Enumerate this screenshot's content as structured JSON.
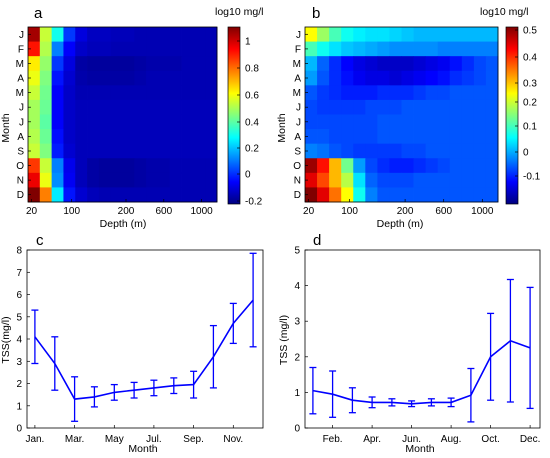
{
  "chart_data": [
    {
      "id": "a",
      "type": "heatmap",
      "panel_label": "a",
      "colorbar_title": "log10 mg/l",
      "ylabel": "Month",
      "xlabel": "Depth (m)",
      "rows": [
        "J",
        "F",
        "M",
        "A",
        "M",
        "J",
        "J",
        "A",
        "S",
        "O",
        "N",
        "D"
      ],
      "x_ticks": [
        "20",
        "100",
        "200",
        "600",
        "1000"
      ],
      "colorbar_ticks": [
        "1",
        "0.8",
        "0.6",
        "0.4",
        "0.2",
        "0",
        "-0.2"
      ],
      "clim": [
        -0.25,
        1.15
      ],
      "col_values": [
        [
          1.1,
          0.55,
          0.3,
          0.0,
          -0.12,
          -0.16,
          -0.16,
          -0.17,
          -0.17,
          -0.18,
          -0.18,
          -0.18,
          -0.18,
          -0.18,
          -0.18,
          -0.18
        ],
        [
          0.95,
          0.52,
          0.1,
          -0.08,
          -0.15,
          -0.17,
          -0.17,
          -0.18,
          -0.18,
          -0.18,
          -0.18,
          -0.18,
          -0.18,
          -0.18,
          -0.18,
          -0.18
        ],
        [
          0.65,
          0.48,
          0.0,
          -0.12,
          -0.2,
          -0.21,
          -0.21,
          -0.21,
          -0.21,
          -0.2,
          -0.19,
          -0.19,
          -0.19,
          -0.18,
          -0.18,
          -0.18
        ],
        [
          0.6,
          0.45,
          -0.05,
          -0.14,
          -0.19,
          -0.2,
          -0.2,
          -0.2,
          -0.2,
          -0.19,
          -0.18,
          -0.18,
          -0.18,
          -0.18,
          -0.18,
          -0.18
        ],
        [
          0.55,
          0.43,
          -0.08,
          -0.15,
          -0.18,
          -0.18,
          -0.18,
          -0.18,
          -0.18,
          -0.18,
          -0.18,
          -0.18,
          -0.18,
          -0.18,
          -0.18,
          -0.18
        ],
        [
          0.5,
          0.42,
          -0.08,
          -0.15,
          -0.17,
          -0.17,
          -0.17,
          -0.17,
          -0.17,
          -0.17,
          -0.17,
          -0.17,
          -0.17,
          -0.17,
          -0.17,
          -0.17
        ],
        [
          0.5,
          0.4,
          -0.08,
          -0.15,
          -0.17,
          -0.17,
          -0.17,
          -0.17,
          -0.17,
          -0.17,
          -0.17,
          -0.17,
          -0.17,
          -0.17,
          -0.17,
          -0.17
        ],
        [
          0.52,
          0.42,
          -0.06,
          -0.15,
          -0.17,
          -0.17,
          -0.17,
          -0.17,
          -0.17,
          -0.17,
          -0.17,
          -0.17,
          -0.17,
          -0.17,
          -0.17,
          -0.17
        ],
        [
          0.55,
          0.45,
          -0.04,
          -0.14,
          -0.17,
          -0.17,
          -0.17,
          -0.17,
          -0.17,
          -0.17,
          -0.17,
          -0.17,
          -0.17,
          -0.17,
          -0.17,
          -0.17
        ],
        [
          0.9,
          0.55,
          0.1,
          -0.1,
          -0.17,
          -0.2,
          -0.21,
          -0.21,
          -0.21,
          -0.2,
          -0.19,
          -0.19,
          -0.18,
          -0.18,
          -0.18,
          -0.18
        ],
        [
          1.0,
          0.6,
          0.12,
          -0.09,
          -0.17,
          -0.2,
          -0.21,
          -0.21,
          -0.21,
          -0.2,
          -0.19,
          -0.19,
          -0.18,
          -0.18,
          -0.18,
          -0.18
        ],
        [
          1.15,
          0.8,
          0.25,
          -0.05,
          -0.14,
          -0.17,
          -0.18,
          -0.18,
          -0.18,
          -0.18,
          -0.18,
          -0.18,
          -0.18,
          -0.18,
          -0.18,
          -0.18
        ]
      ]
    },
    {
      "id": "b",
      "type": "heatmap",
      "panel_label": "b",
      "colorbar_title": "log10 mg/l",
      "ylabel": "Month",
      "xlabel": "Depth (m)",
      "rows": [
        "J",
        "F",
        "M",
        "A",
        "M",
        "J",
        "J",
        "A",
        "S",
        "O",
        "N",
        "D"
      ],
      "x_ticks": [
        "20",
        "100",
        "200",
        "600",
        "1000"
      ],
      "colorbar_ticks": [
        "0.5",
        "0.4",
        "0.3",
        "0.2",
        "0.1",
        "0",
        "-0.1"
      ],
      "clim": [
        -0.2,
        0.52
      ],
      "col_values": [
        [
          0.25,
          0.18,
          0.12,
          0.08,
          0.06,
          0.05,
          0.05,
          0.04,
          0.03,
          0.02,
          0.02,
          0.02,
          0.02,
          0.02,
          0.02,
          0.02
        ],
        [
          0.12,
          0.08,
          0.05,
          0.03,
          0.02,
          0.01,
          0.0,
          -0.01,
          -0.01,
          -0.01,
          -0.01,
          -0.02,
          -0.02,
          -0.02,
          -0.02,
          -0.02
        ],
        [
          0.02,
          -0.04,
          -0.08,
          -0.11,
          -0.13,
          -0.14,
          -0.15,
          -0.15,
          -0.15,
          -0.14,
          -0.13,
          -0.12,
          -0.1,
          -0.08,
          -0.06,
          -0.05
        ],
        [
          0.0,
          -0.05,
          -0.08,
          -0.1,
          -0.12,
          -0.13,
          -0.13,
          -0.14,
          -0.13,
          -0.12,
          -0.11,
          -0.1,
          -0.08,
          -0.07,
          -0.06,
          -0.05
        ],
        [
          -0.05,
          -0.07,
          -0.08,
          -0.09,
          -0.09,
          -0.09,
          -0.08,
          -0.08,
          -0.08,
          -0.07,
          -0.06,
          -0.06,
          -0.05,
          -0.05,
          -0.05,
          -0.05
        ],
        [
          -0.06,
          -0.07,
          -0.07,
          -0.07,
          -0.07,
          -0.06,
          -0.06,
          -0.06,
          -0.05,
          -0.05,
          -0.05,
          -0.05,
          -0.05,
          -0.05,
          -0.05,
          -0.05
        ],
        [
          -0.06,
          -0.06,
          -0.06,
          -0.06,
          -0.06,
          -0.06,
          -0.05,
          -0.05,
          -0.05,
          -0.05,
          -0.05,
          -0.05,
          -0.05,
          -0.05,
          -0.05,
          -0.05
        ],
        [
          -0.05,
          -0.05,
          -0.06,
          -0.06,
          -0.06,
          -0.06,
          -0.05,
          -0.05,
          -0.05,
          -0.05,
          -0.05,
          -0.05,
          -0.05,
          -0.05,
          -0.05,
          -0.05
        ],
        [
          -0.02,
          -0.03,
          -0.05,
          -0.06,
          -0.07,
          -0.07,
          -0.07,
          -0.07,
          -0.06,
          -0.06,
          -0.05,
          -0.05,
          -0.05,
          -0.05,
          -0.05,
          -0.05
        ],
        [
          0.5,
          0.42,
          0.3,
          0.15,
          0.0,
          -0.06,
          -0.08,
          -0.09,
          -0.09,
          -0.08,
          -0.07,
          -0.06,
          -0.05,
          -0.05,
          -0.05,
          -0.05
        ],
        [
          0.45,
          0.38,
          0.3,
          0.2,
          0.05,
          -0.04,
          -0.06,
          -0.06,
          -0.06,
          -0.05,
          -0.05,
          -0.05,
          -0.05,
          -0.05,
          -0.05,
          -0.05
        ],
        [
          0.52,
          0.45,
          0.35,
          0.25,
          0.08,
          -0.02,
          -0.05,
          -0.05,
          -0.05,
          -0.05,
          -0.05,
          -0.05,
          -0.05,
          -0.05,
          -0.05,
          -0.05
        ]
      ]
    },
    {
      "id": "c",
      "type": "line",
      "panel_label": "c",
      "xlabel": "Month",
      "ylabel": "TSS(mg/l)",
      "ylim": [
        0,
        8
      ],
      "y_ticks": [
        "0",
        "1",
        "2",
        "3",
        "4",
        "5",
        "6",
        "7",
        "8"
      ],
      "x_tick_labels": [
        "Jan.",
        "Mar.",
        "May",
        "Jul.",
        "Sep.",
        "Nov."
      ],
      "x_tick_positions": [
        1,
        3,
        5,
        7,
        9,
        11
      ],
      "xlim": [
        0.6,
        12.5
      ],
      "x": [
        1,
        2,
        3,
        4,
        5,
        6,
        7,
        8,
        9,
        10,
        11,
        12
      ],
      "y": [
        4.1,
        2.9,
        1.3,
        1.4,
        1.6,
        1.7,
        1.8,
        1.9,
        1.95,
        3.2,
        4.7,
        5.75
      ],
      "err": [
        1.2,
        1.2,
        1.0,
        0.45,
        0.35,
        0.35,
        0.35,
        0.35,
        0.6,
        1.4,
        0.9,
        2.1
      ]
    },
    {
      "id": "d",
      "type": "line",
      "panel_label": "d",
      "xlabel": "Month",
      "ylabel": "TSS (mg/l)",
      "ylim": [
        0,
        5
      ],
      "y_ticks": [
        "0",
        "1",
        "2",
        "3",
        "4",
        "5"
      ],
      "x_tick_labels": [
        "Feb.",
        "Apr.",
        "Jun.",
        "Aug.",
        "Oct.",
        "Dec."
      ],
      "x_tick_positions": [
        2,
        4,
        6,
        8,
        10,
        12
      ],
      "xlim": [
        0.6,
        12.5
      ],
      "x": [
        1,
        2,
        3,
        4,
        5,
        6,
        7,
        8,
        9,
        10,
        11,
        12
      ],
      "y": [
        1.05,
        0.95,
        0.78,
        0.72,
        0.72,
        0.68,
        0.72,
        0.72,
        0.92,
        2.0,
        2.45,
        2.25
      ],
      "err": [
        0.65,
        0.65,
        0.35,
        0.15,
        0.1,
        0.08,
        0.1,
        0.12,
        0.75,
        1.22,
        1.72,
        1.7
      ]
    }
  ]
}
